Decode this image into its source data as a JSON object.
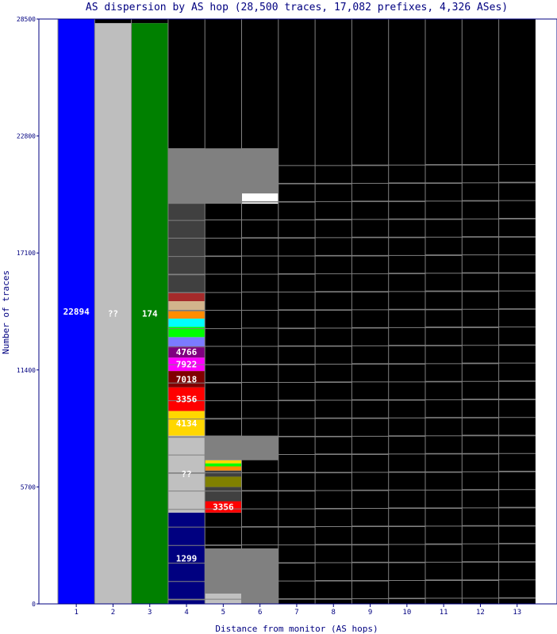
{
  "chart_data": {
    "type": "bar",
    "title": "AS dispersion by AS hop (28,500 traces, 17,082 prefixes, 4,326 ASes)",
    "xlabel": "Distance from monitor (AS hops)",
    "ylabel": "Number of traces",
    "ylim": [
      0,
      28500
    ],
    "y_ticks": [
      "0",
      "5700",
      "11400",
      "17100",
      "22800",
      "28500"
    ],
    "y_tick_values": [
      0,
      5700,
      11400,
      17100,
      22800,
      28500
    ],
    "categories": [
      "1",
      "2",
      "3",
      "4",
      "5",
      "6",
      "7",
      "8",
      "9",
      "10",
      "11",
      "12",
      "13"
    ],
    "columns": [
      {
        "hop": "1",
        "segments": [
          {
            "from": 0,
            "to": 28500,
            "color": "#0000ff",
            "label": "22894"
          }
        ]
      },
      {
        "hop": "2",
        "segments": [
          {
            "from": 0,
            "to": 28300,
            "color": "#bebebe",
            "label": "??"
          },
          {
            "from": 28300,
            "to": 28500,
            "color": "#000000"
          }
        ]
      },
      {
        "hop": "3",
        "segments": [
          {
            "from": 0,
            "to": 28300,
            "color": "#008000",
            "label": "174"
          },
          {
            "from": 28300,
            "to": 28500,
            "color": "#000000"
          }
        ]
      },
      {
        "hop": "4",
        "segments": [
          {
            "from": 0,
            "to": 4450,
            "color": "#000080",
            "label": "1299"
          },
          {
            "from": 4450,
            "to": 8200,
            "color": "#c0c0c0",
            "label": "??"
          },
          {
            "from": 8200,
            "to": 9400,
            "color": "#ffd700",
            "label": "4134"
          },
          {
            "from": 9400,
            "to": 10550,
            "color": "#ff0000",
            "label": "3356"
          },
          {
            "from": 10550,
            "to": 11350,
            "color": "#800000",
            "label": "7018"
          },
          {
            "from": 11350,
            "to": 12000,
            "color": "#ff00ff",
            "label": "7922"
          },
          {
            "from": 12000,
            "to": 12550,
            "color": "#800080",
            "label": "4766"
          },
          {
            "from": 12550,
            "to": 13000,
            "color": "#7b7bff"
          },
          {
            "from": 13000,
            "to": 13500,
            "color": "#00ff00"
          },
          {
            "from": 13500,
            "to": 13900,
            "color": "#00ffff"
          },
          {
            "from": 13900,
            "to": 14300,
            "color": "#ff8c00"
          },
          {
            "from": 14300,
            "to": 14750,
            "color": "#d2b48c"
          },
          {
            "from": 14750,
            "to": 15150,
            "color": "#a52a2a"
          },
          {
            "from": 15150,
            "to": 19500,
            "color": "#404040"
          },
          {
            "from": 19500,
            "to": 22200,
            "color": "#808080"
          },
          {
            "from": 22200,
            "to": 28500,
            "color": "#000000"
          }
        ]
      },
      {
        "hop": "5",
        "segments": [
          {
            "from": 0,
            "to": 500,
            "color": "#c0c0c0"
          },
          {
            "from": 500,
            "to": 2700,
            "color": "#808080"
          },
          {
            "from": 2700,
            "to": 4450,
            "color": "#000000"
          },
          {
            "from": 4450,
            "to": 5000,
            "color": "#ff0000",
            "label": "3356"
          },
          {
            "from": 5000,
            "to": 5700,
            "color": "#404040"
          },
          {
            "from": 5700,
            "to": 6200,
            "color": "#808000"
          },
          {
            "from": 6200,
            "to": 6500,
            "color": "#404040"
          },
          {
            "from": 6500,
            "to": 6700,
            "color": "#ff8c00"
          },
          {
            "from": 6700,
            "to": 6850,
            "color": "#00ff00"
          },
          {
            "from": 6850,
            "to": 7000,
            "color": "#ffd700"
          },
          {
            "from": 7000,
            "to": 8200,
            "color": "#808080"
          },
          {
            "from": 8200,
            "to": 22200,
            "color": "#000000"
          },
          {
            "from": 19500,
            "to": 22200,
            "color": "#808080"
          },
          {
            "from": 22200,
            "to": 28500,
            "color": "#000000"
          }
        ]
      },
      {
        "hop": "6",
        "segments": [
          {
            "from": 0,
            "to": 2700,
            "color": "#808080"
          },
          {
            "from": 2700,
            "to": 8200,
            "color": "#000000"
          },
          {
            "from": 7000,
            "to": 8200,
            "color": "#808080"
          },
          {
            "from": 8200,
            "to": 19500,
            "color": "#000000"
          },
          {
            "from": 20000,
            "to": 22200,
            "color": "#808080"
          },
          {
            "from": 22200,
            "to": 28500,
            "color": "#000000"
          }
        ]
      },
      {
        "hop": "7",
        "segments": [
          {
            "from": 0,
            "to": 28500,
            "color": "#000000"
          }
        ]
      },
      {
        "hop": "8",
        "segments": [
          {
            "from": 0,
            "to": 28500,
            "color": "#000000"
          }
        ]
      },
      {
        "hop": "9",
        "segments": [
          {
            "from": 0,
            "to": 28500,
            "color": "#000000"
          }
        ]
      },
      {
        "hop": "10",
        "segments": [
          {
            "from": 0,
            "to": 28500,
            "color": "#000000"
          }
        ]
      },
      {
        "hop": "11",
        "segments": [
          {
            "from": 0,
            "to": 28500,
            "color": "#000000"
          }
        ]
      },
      {
        "hop": "12",
        "segments": [
          {
            "from": 0,
            "to": 28500,
            "color": "#000000"
          }
        ]
      },
      {
        "hop": "13",
        "segments": [
          {
            "from": 0,
            "to": 28500,
            "color": "#000000"
          }
        ]
      }
    ],
    "grid": false,
    "legend": "none",
    "colors": {
      "frame": "#000080",
      "text": "#000080",
      "label_text": "#ffffff",
      "divider": "#808080"
    }
  }
}
